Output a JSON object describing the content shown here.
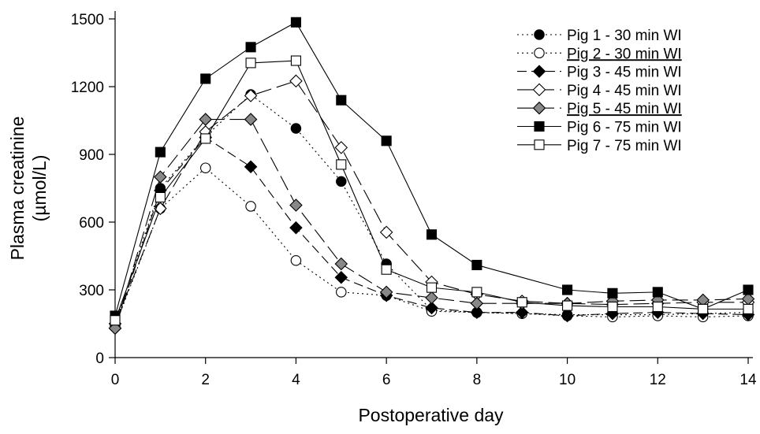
{
  "chart_data": {
    "type": "line",
    "title": "",
    "xlabel": "Postoperative day",
    "ylabel_line1": "Plasma creatinine",
    "ylabel_line2": "(µmol/L)",
    "xlim": [
      0,
      14
    ],
    "ylim": [
      0,
      1500
    ],
    "x_ticks": [
      0,
      2,
      4,
      6,
      8,
      10,
      12,
      14
    ],
    "y_ticks": [
      0,
      300,
      600,
      900,
      1200,
      1500
    ],
    "grid": false,
    "legend_position": "top-right",
    "series": [
      {
        "name": "Pig 1 - 30 min WI",
        "underlined": false,
        "marker": "circle",
        "fill": "#000000",
        "dash": "dotted",
        "x": [
          0,
          1,
          2,
          3,
          4,
          5,
          6,
          7,
          8,
          9,
          10,
          11,
          12,
          13,
          14
        ],
        "y": [
          150,
          750,
          980,
          1165,
          1015,
          780,
          415,
          210,
          200,
          195,
          190,
          190,
          190,
          195,
          200
        ]
      },
      {
        "name": "Pig 2 - 30 min WI",
        "underlined": true,
        "marker": "circle",
        "fill": "#ffffff",
        "dash": "dotted",
        "x": [
          0,
          1,
          2,
          3,
          4,
          5,
          6,
          7,
          8,
          9,
          10,
          11,
          12,
          13,
          14
        ],
        "y": [
          140,
          660,
          840,
          670,
          430,
          290,
          275,
          205,
          200,
          195,
          185,
          180,
          185,
          180,
          185
        ]
      },
      {
        "name": "Pig 3 - 45 min WI",
        "underlined": false,
        "marker": "diamond",
        "fill": "#000000",
        "dash": "dashed",
        "x": [
          0,
          1,
          2,
          3,
          4,
          5,
          6,
          7,
          8,
          9,
          10,
          11,
          12,
          13,
          14
        ],
        "y": [
          130,
          740,
          975,
          845,
          575,
          355,
          275,
          220,
          200,
          200,
          185,
          195,
          200,
          195,
          190
        ]
      },
      {
        "name": "Pig 4 - 45 min WI",
        "underlined": false,
        "marker": "diamond",
        "fill": "#ffffff",
        "dash": "longdash",
        "x": [
          0,
          1,
          2,
          3,
          4,
          5,
          6,
          7,
          8,
          9,
          10,
          11,
          12,
          13,
          14
        ],
        "y": [
          150,
          660,
          1000,
          1160,
          1225,
          930,
          555,
          335,
          280,
          250,
          240,
          235,
          240,
          245,
          245
        ]
      },
      {
        "name": "Pig 5 - 45 min WI",
        "underlined": true,
        "marker": "diamond",
        "fill": "#888888",
        "dash": "longdash",
        "x": [
          0,
          1,
          2,
          3,
          4,
          5,
          6,
          7,
          8,
          9,
          10,
          11,
          12,
          13,
          14
        ],
        "y": [
          130,
          800,
          1055,
          1055,
          675,
          415,
          290,
          265,
          240,
          240,
          240,
          250,
          255,
          255,
          260
        ]
      },
      {
        "name": "Pig 6 - 75 min WI",
        "underlined": false,
        "marker": "square",
        "fill": "#000000",
        "dash": "solid",
        "x": [
          0,
          1,
          2,
          3,
          4,
          5,
          6,
          7,
          8,
          10,
          11,
          12,
          13,
          14
        ],
        "y": [
          185,
          910,
          1235,
          1375,
          1485,
          1140,
          960,
          545,
          410,
          300,
          285,
          290,
          215,
          300
        ]
      },
      {
        "name": "Pig 7 - 75 min WI",
        "underlined": false,
        "marker": "square",
        "fill": "#ffffff",
        "dash": "solid",
        "x": [
          0,
          1,
          2,
          3,
          4,
          5,
          6,
          7,
          8,
          9,
          10,
          11,
          12,
          13,
          14
        ],
        "y": [
          165,
          710,
          970,
          1305,
          1315,
          855,
          390,
          310,
          290,
          245,
          230,
          225,
          225,
          215,
          215
        ]
      }
    ]
  }
}
